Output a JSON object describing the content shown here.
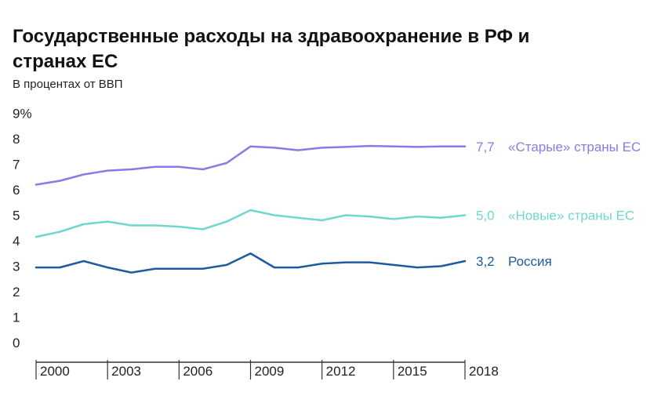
{
  "title": "Государственные расходы на здравоохранение в РФ и странах ЕС",
  "subtitle": "В процентах от ВВП",
  "chart_data": {
    "type": "line",
    "title": "Государственные расходы на здравоохранение в РФ и странах ЕС",
    "subtitle": "В процентах от ВВП",
    "x": [
      2000,
      2001,
      2002,
      2003,
      2004,
      2005,
      2006,
      2007,
      2008,
      2009,
      2010,
      2011,
      2012,
      2013,
      2014,
      2015,
      2016,
      2017,
      2018
    ],
    "x_ticks": [
      "2000",
      "2003",
      "2006",
      "2009",
      "2012",
      "2015",
      "2018"
    ],
    "y_ticks": [
      "0",
      "1",
      "2",
      "3",
      "4",
      "5",
      "6",
      "7",
      "8",
      "9%"
    ],
    "ylim": [
      0,
      9
    ],
    "grid": false,
    "series": [
      {
        "name": "«Старые» страны ЕС",
        "end_value": "7,7",
        "color": "#8b79e6",
        "values": [
          6.2,
          6.35,
          6.6,
          6.75,
          6.8,
          6.9,
          6.9,
          6.8,
          7.05,
          7.7,
          7.65,
          7.55,
          7.65,
          7.68,
          7.72,
          7.7,
          7.68,
          7.7,
          7.7
        ]
      },
      {
        "name": "«Новые» страны ЕС",
        "end_value": "5,0",
        "color": "#6fd8cd",
        "values": [
          4.15,
          4.35,
          4.65,
          4.75,
          4.6,
          4.6,
          4.55,
          4.45,
          4.75,
          5.2,
          5.0,
          4.9,
          4.8,
          5.0,
          4.95,
          4.85,
          4.95,
          4.9,
          5.0
        ]
      },
      {
        "name": "Россия",
        "end_value": "3,2",
        "color": "#1e5aa0",
        "values": [
          2.95,
          2.95,
          3.2,
          2.95,
          2.75,
          2.9,
          2.9,
          2.9,
          3.05,
          3.5,
          2.95,
          2.95,
          3.1,
          3.15,
          3.15,
          3.05,
          2.95,
          3.0,
          3.2
        ]
      }
    ]
  }
}
